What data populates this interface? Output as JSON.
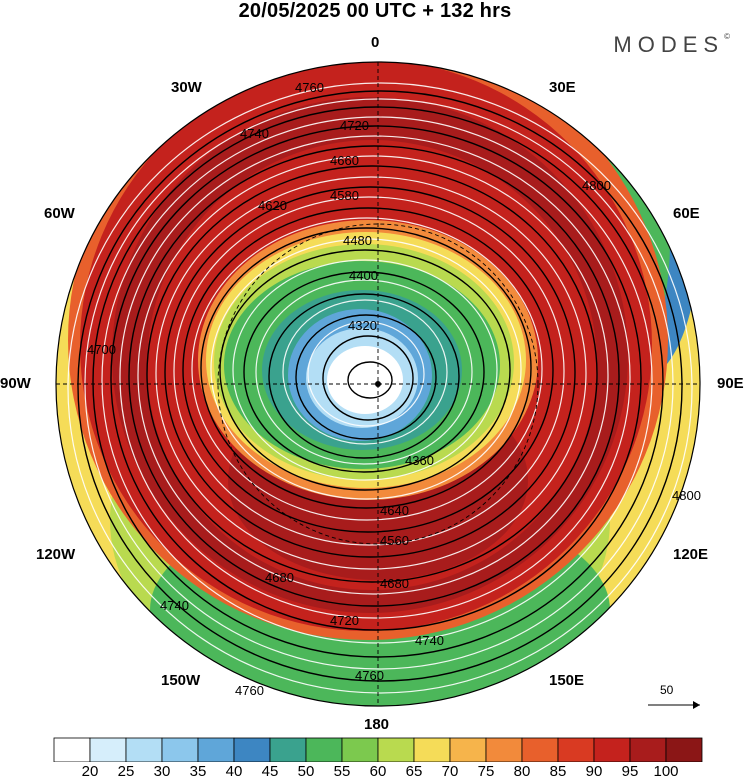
{
  "title": "20/05/2025  00 UTC  + 132 hrs",
  "brand": "MODES",
  "brand_mark": "©",
  "longitude_labels": {
    "lon_0": "0",
    "lon_30e": "30E",
    "lon_60e": "60E",
    "lon_90e": "90E",
    "lon_120e": "120E",
    "lon_150e": "150E",
    "lon_180": "180",
    "lon_150w": "150W",
    "lon_120w": "120W",
    "lon_90w": "90W",
    "lon_60w": "60W",
    "lon_30w": "30W"
  },
  "reference_vector": {
    "label": "50"
  },
  "colorbar": {
    "ticks": [
      "20",
      "25",
      "30",
      "35",
      "40",
      "45",
      "50",
      "55",
      "60",
      "65",
      "70",
      "75",
      "80",
      "85",
      "90",
      "95",
      "100"
    ],
    "colors": [
      "#ffffff",
      "#d6eefb",
      "#b3def5",
      "#8cc7ec",
      "#5fa6d9",
      "#3d86c2",
      "#3aa28e",
      "#4cb75a",
      "#7cc94e",
      "#b9da4f",
      "#f5dc58",
      "#f6b44b",
      "#f28a3b",
      "#e8602c",
      "#d93a22",
      "#c4221d",
      "#a81c1c",
      "#8b1616"
    ]
  },
  "contours": [
    {
      "label": "4760"
    },
    {
      "label": "4740"
    },
    {
      "label": "4720"
    },
    {
      "label": "4700"
    },
    {
      "label": "4660"
    },
    {
      "label": "4620"
    },
    {
      "label": "4580"
    },
    {
      "label": "4480"
    },
    {
      "label": "4400"
    },
    {
      "label": "4320"
    },
    {
      "label": "4360"
    },
    {
      "label": "4560"
    },
    {
      "label": "4640"
    },
    {
      "label": "4680"
    },
    {
      "label": "4800"
    }
  ]
}
